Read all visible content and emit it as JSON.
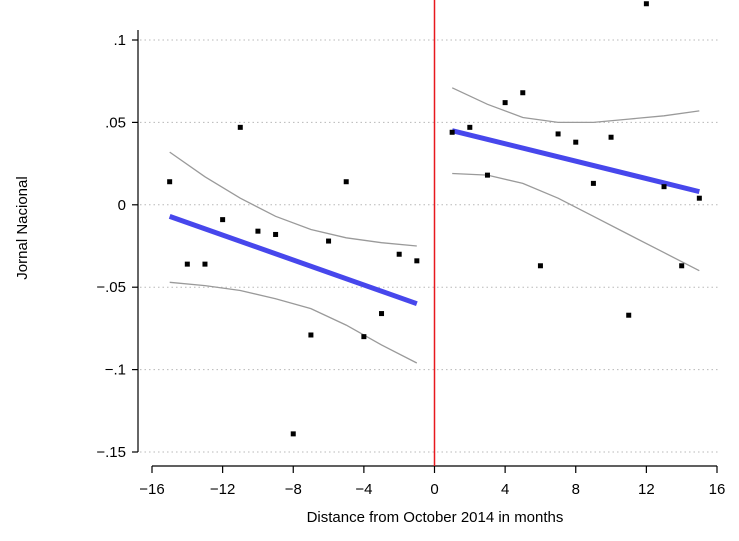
{
  "chart_data": {
    "type": "scatter",
    "title": "",
    "xlabel": "Distance from October 2014 in months",
    "ylabel": "Jornal Nacional",
    "xlim": [
      -16,
      16
    ],
    "ylim": [
      -0.15,
      0.12
    ],
    "x_ticks": [
      -16,
      -12,
      -8,
      -4,
      0,
      4,
      8,
      12,
      16
    ],
    "x_tick_labels": [
      "−16",
      "−12",
      "−8",
      "−4",
      "0",
      "4",
      "8",
      "12",
      "16"
    ],
    "y_ticks": [
      -0.15,
      -0.1,
      -0.05,
      0,
      0.05,
      0.1
    ],
    "y_tick_labels": [
      "−.15",
      "−.1",
      "−.05",
      "0",
      ".05",
      ".1"
    ],
    "grid": "horizontal dotted",
    "cutoff_line": {
      "x": 0,
      "color": "#e8191e"
    },
    "colors": {
      "fit": "#4747ec",
      "ci": "#9a9a9a",
      "points": "#000000",
      "axes": "#000000",
      "grid": "#b8b8b8"
    },
    "points": [
      {
        "x": -15,
        "y": 0.014
      },
      {
        "x": -14,
        "y": -0.036
      },
      {
        "x": -13,
        "y": -0.036
      },
      {
        "x": -12,
        "y": -0.009
      },
      {
        "x": -11,
        "y": 0.047
      },
      {
        "x": -10,
        "y": -0.016
      },
      {
        "x": -9,
        "y": -0.018
      },
      {
        "x": -8,
        "y": -0.139
      },
      {
        "x": -7,
        "y": -0.079
      },
      {
        "x": -6,
        "y": -0.022
      },
      {
        "x": -5,
        "y": 0.014
      },
      {
        "x": -4,
        "y": -0.08
      },
      {
        "x": -3,
        "y": -0.066
      },
      {
        "x": -2,
        "y": -0.03
      },
      {
        "x": -1,
        "y": -0.034
      },
      {
        "x": 1,
        "y": 0.044
      },
      {
        "x": 2,
        "y": 0.047
      },
      {
        "x": 3,
        "y": 0.018
      },
      {
        "x": 4,
        "y": 0.062
      },
      {
        "x": 5,
        "y": 0.068
      },
      {
        "x": 6,
        "y": -0.037
      },
      {
        "x": 7,
        "y": 0.043
      },
      {
        "x": 8,
        "y": 0.038
      },
      {
        "x": 9,
        "y": 0.013
      },
      {
        "x": 10,
        "y": 0.041
      },
      {
        "x": 11,
        "y": -0.067
      },
      {
        "x": 12,
        "y": 0.122
      },
      {
        "x": 13,
        "y": 0.011
      },
      {
        "x": 14,
        "y": -0.037
      },
      {
        "x": 15,
        "y": 0.004
      }
    ],
    "fit_lines": [
      {
        "side": "left",
        "x": [
          -15,
          -1
        ],
        "y": [
          -0.007,
          -0.06
        ]
      },
      {
        "side": "right",
        "x": [
          1,
          15
        ],
        "y": [
          0.045,
          0.008
        ]
      }
    ],
    "ci_bands": [
      {
        "side": "left",
        "bound": "upper",
        "x": [
          -15,
          -13,
          -11,
          -9,
          -7,
          -5,
          -3,
          -1
        ],
        "y": [
          0.032,
          0.017,
          0.004,
          -0.007,
          -0.015,
          -0.02,
          -0.023,
          -0.025
        ]
      },
      {
        "side": "left",
        "bound": "lower",
        "x": [
          -15,
          -13,
          -11,
          -9,
          -7,
          -5,
          -3,
          -1
        ],
        "y": [
          -0.047,
          -0.049,
          -0.052,
          -0.057,
          -0.063,
          -0.073,
          -0.085,
          -0.096
        ]
      },
      {
        "side": "right",
        "bound": "upper",
        "x": [
          1,
          3,
          5,
          7,
          9,
          11,
          13,
          15
        ],
        "y": [
          0.071,
          0.061,
          0.053,
          0.05,
          0.05,
          0.052,
          0.054,
          0.057
        ]
      },
      {
        "side": "right",
        "bound": "lower",
        "x": [
          1,
          3,
          5,
          7,
          9,
          11,
          13,
          15
        ],
        "y": [
          0.019,
          0.018,
          0.013,
          0.004,
          -0.007,
          -0.018,
          -0.029,
          -0.04
        ]
      }
    ]
  }
}
